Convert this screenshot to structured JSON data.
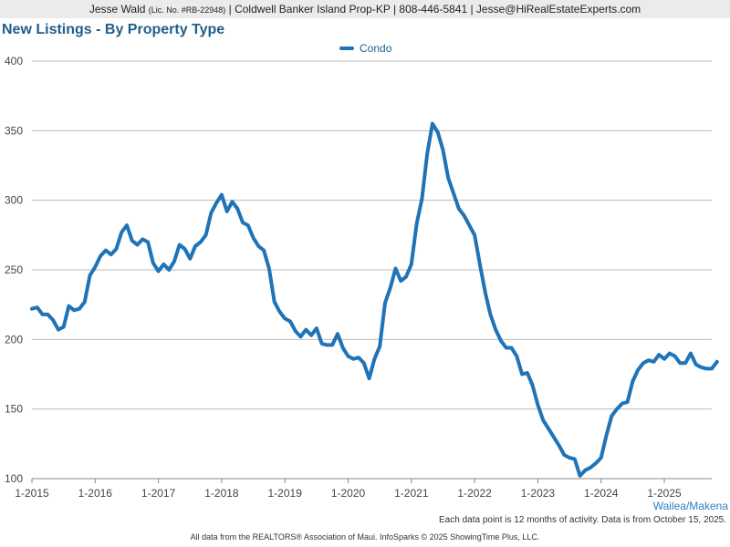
{
  "header": {
    "name": "Jesse Wald",
    "license": "(Lic. No. #RB-22948)",
    "rest": "| Coldwell Banker Island Prop-KP | 808-446-5841 | Jesse@HiRealEstateExperts.com"
  },
  "footer": {
    "region": "Wailea/Makena",
    "note": "Each data point is 12 months of activity. Data is from October 15, 2025.",
    "credit": "All data from the REALTORS® Association of Maui. InfoSparks © 2025 ShowingTime Plus, LLC."
  },
  "colors": {
    "line": "#1f73b7",
    "grid": "#bdbdbd",
    "axis": "#888888"
  },
  "chart_data": {
    "type": "line",
    "title": "New Listings - By Property Type",
    "xlabel": "",
    "ylabel": "",
    "ylim": [
      100,
      400
    ],
    "yticks": [
      100,
      150,
      200,
      250,
      300,
      350,
      400
    ],
    "xlim": [
      0,
      129
    ],
    "xticks": [
      {
        "label": "1-2015",
        "x": 0
      },
      {
        "label": "1-2016",
        "x": 12
      },
      {
        "label": "1-2017",
        "x": 24
      },
      {
        "label": "1-2018",
        "x": 36
      },
      {
        "label": "1-2019",
        "x": 48
      },
      {
        "label": "1-2020",
        "x": 60
      },
      {
        "label": "1-2021",
        "x": 72
      },
      {
        "label": "1-2022",
        "x": 84
      },
      {
        "label": "1-2023",
        "x": 96
      },
      {
        "label": "1-2024",
        "x": 108
      },
      {
        "label": "1-2025",
        "x": 120
      }
    ],
    "legend": "top-center",
    "series": [
      {
        "name": "Condo",
        "values": [
          222,
          223,
          218,
          218,
          214,
          207,
          209,
          224,
          221,
          222,
          227,
          246,
          252,
          260,
          264,
          261,
          265,
          277,
          282,
          271,
          268,
          272,
          270,
          255,
          249,
          254,
          250,
          256,
          268,
          265,
          258,
          267,
          270,
          275,
          291,
          298,
          304,
          292,
          299,
          294,
          284,
          282,
          273,
          267,
          264,
          251,
          227,
          220,
          215,
          213,
          206,
          202,
          207,
          203,
          208,
          197,
          196,
          196,
          204,
          194,
          188,
          186,
          187,
          183,
          172,
          186,
          195,
          226,
          237,
          251,
          242,
          245,
          254,
          283,
          301,
          333,
          355,
          349,
          336,
          316,
          305,
          294,
          289,
          282,
          275,
          254,
          234,
          218,
          207,
          199,
          194,
          194,
          188,
          175,
          176,
          167,
          153,
          142,
          136,
          130,
          124,
          117,
          115,
          114,
          102,
          106,
          108,
          111,
          115,
          131,
          145,
          150,
          154,
          155,
          170,
          178,
          183,
          185,
          184,
          189,
          186,
          190,
          188,
          183,
          183,
          190,
          182,
          180,
          179,
          179,
          184
        ]
      }
    ]
  }
}
